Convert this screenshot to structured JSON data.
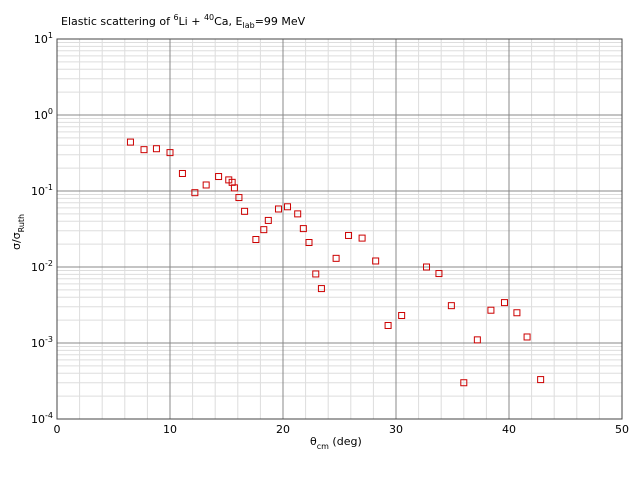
{
  "chart_data": {
    "type": "scatter",
    "title": {
      "prefix": "Elastic scattering of ",
      "sup1": "6",
      "mid1": "Li + ",
      "sup2": "40",
      "mid2": "Ca, E",
      "sub": "lab",
      "suffix": "=99 MeV"
    },
    "xlabel": {
      "main": "θ",
      "sub": "cm",
      "suffix": " (deg)"
    },
    "ylabel": {
      "main": "σ/σ",
      "sub": "Ruth"
    },
    "xlim": [
      0,
      50
    ],
    "ylim": [
      0.0001,
      10
    ],
    "y_scale": "log",
    "grid": true,
    "x_ticks": [
      "0",
      "10",
      "20",
      "30",
      "40",
      "50"
    ],
    "y_ticks": [
      {
        "base": "10",
        "exp": "-4"
      },
      {
        "base": "10",
        "exp": "-3"
      },
      {
        "base": "10",
        "exp": "-2"
      },
      {
        "base": "10",
        "exp": "-1"
      },
      {
        "base": "10",
        "exp": "0"
      },
      {
        "base": "10",
        "exp": "1"
      }
    ],
    "marker": {
      "shape": "open-square",
      "color": "#cc0000"
    },
    "series": [
      {
        "x": [
          6.5,
          7.7,
          8.8,
          10.0,
          11.1,
          12.2,
          13.2,
          14.3,
          15.2,
          15.5,
          15.7,
          16.1,
          16.6,
          17.6,
          18.3,
          18.7,
          19.6,
          20.4,
          21.3,
          21.8,
          22.3,
          22.9,
          23.4,
          24.7,
          25.8,
          27.0,
          28.2,
          29.3,
          30.5,
          32.7,
          33.8,
          34.9,
          36.0,
          37.2,
          38.4,
          39.6,
          40.7,
          41.6,
          42.8
        ],
        "y": [
          0.44,
          0.35,
          0.36,
          0.32,
          0.17,
          0.095,
          0.12,
          0.155,
          0.14,
          0.13,
          0.11,
          0.082,
          0.054,
          0.023,
          0.031,
          0.041,
          0.058,
          0.062,
          0.05,
          0.032,
          0.021,
          0.0081,
          0.0052,
          0.013,
          0.026,
          0.024,
          0.012,
          0.0017,
          0.0023,
          0.01,
          0.0082,
          0.0031,
          0.0003,
          0.0011,
          0.0027,
          0.0034,
          0.0025,
          0.0012,
          0.00033
        ]
      }
    ]
  }
}
